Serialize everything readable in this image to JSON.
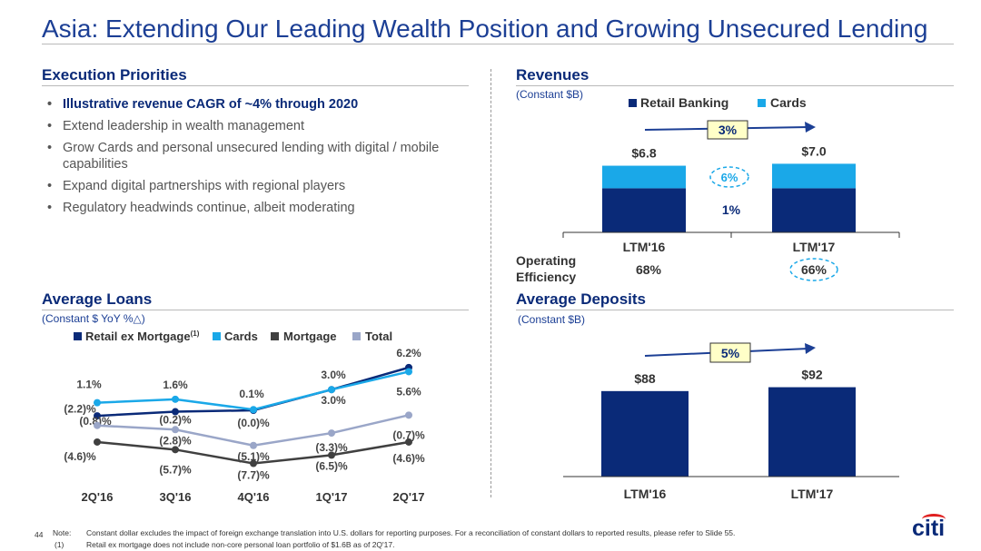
{
  "title": "Asia: Extending Our Leading Wealth Position and Growing Unsecured Lending",
  "execution": {
    "title": "Execution Priorities",
    "bullets": [
      "Illustrative revenue CAGR of ~4% through 2020",
      "Extend leadership in wealth management",
      "Grow Cards and personal unsecured lending with digital / mobile capabilities",
      "Expand digital partnerships with regional players",
      "Regulatory headwinds continue, albeit moderating"
    ]
  },
  "revenues": {
    "title": "Revenues",
    "subtitle": "(Constant $B)",
    "growth_label": "3%",
    "cards_growth": "6%",
    "retail_growth": "1%",
    "opeff_label": "Operating Efficiency",
    "opeff_values": [
      "68%",
      "66%"
    ],
    "totals": [
      "$6.8",
      "$7.0"
    ]
  },
  "loans": {
    "title": "Average Loans",
    "subtitle": "(Constant $ YoY %△)"
  },
  "deposits": {
    "title": "Average Deposits",
    "subtitle": "(Constant $B)",
    "growth_label": "5%"
  },
  "notes": {
    "page": "44",
    "note_label": "Note:",
    "note_text": "Constant dollar excludes the impact of foreign exchange translation into U.S. dollars for reporting purposes.  For a reconciliation of constant dollars to reported results, please refer to Slide 55.",
    "fn_label": "(1)",
    "fn_text": "Retail ex mortgage does not include non-core personal loan portfolio of $1.6B as of 2Q'17."
  },
  "logo": "citi",
  "colors": {
    "navy": "#0a2a78",
    "cyan": "#1aa8e8",
    "gray": "#404040",
    "light": "#9aa6c8"
  },
  "chart_data": [
    {
      "type": "bar",
      "stacked": true,
      "categories": [
        "LTM'16",
        "LTM'17"
      ],
      "series": [
        {
          "name": "Retail Banking",
          "values": [
            4.5,
            4.5
          ]
        },
        {
          "name": "Cards",
          "values": [
            2.3,
            2.5
          ]
        }
      ],
      "totals": [
        "$6.8",
        "$7.0"
      ],
      "legend": [
        "Retail Banking",
        "Cards"
      ],
      "title": "Revenues"
    },
    {
      "type": "line",
      "categories": [
        "2Q'16",
        "3Q'16",
        "4Q'16",
        "1Q'17",
        "2Q'17"
      ],
      "series": [
        {
          "name": "Retail ex Mortgage(1)",
          "values": [
            -0.8,
            -0.2,
            0.0,
            3.0,
            6.2
          ],
          "labels": [
            "(0.8)%",
            "(0.2)%",
            "(0.0)%",
            "3.0%",
            "6.2%"
          ]
        },
        {
          "name": "Cards",
          "values": [
            1.1,
            1.6,
            0.1,
            3.0,
            5.6
          ],
          "labels": [
            "1.1%",
            "1.6%",
            "0.1%",
            "3.0%",
            "5.6%"
          ]
        },
        {
          "name": "Mortgage",
          "values": [
            -4.6,
            -5.7,
            -7.7,
            -6.5,
            -4.6
          ],
          "labels": [
            "(4.6)%",
            "(5.7)%",
            "(7.7)%",
            "(6.5)%",
            "(4.6)%"
          ]
        },
        {
          "name": "Total",
          "values": [
            -2.2,
            -2.8,
            -5.1,
            -3.3,
            -0.7
          ],
          "labels": [
            "(2.2)%",
            "(2.8)%",
            "(5.1)%",
            "(3.3)%",
            "(0.7)%"
          ]
        }
      ],
      "legend": [
        "Retail ex Mortgage(1)",
        "Cards",
        "Mortgage",
        "Total"
      ],
      "title": "Average Loans"
    },
    {
      "type": "bar",
      "categories": [
        "LTM'16",
        "LTM'17"
      ],
      "values": [
        88,
        92
      ],
      "value_labels": [
        "$88",
        "$92"
      ],
      "title": "Average Deposits"
    }
  ]
}
